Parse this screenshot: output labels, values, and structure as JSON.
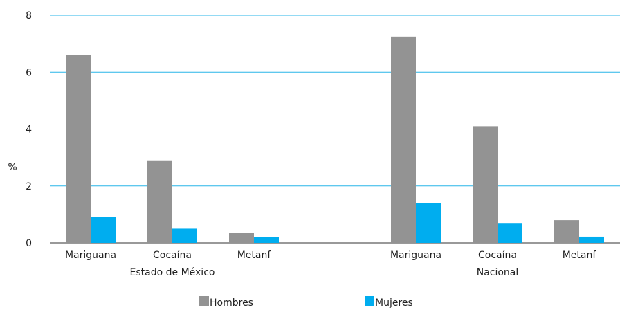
{
  "chart_data": {
    "type": "bar",
    "ylabel": "%",
    "ylim": [
      0,
      8
    ],
    "yticks": [
      "0",
      "2",
      "4",
      "6",
      "8"
    ],
    "grid": true,
    "legend_placement": "bottom",
    "groups": [
      {
        "label": "Estado de México",
        "categories": [
          "Mariguana",
          "Cocaína",
          "Metanf"
        ]
      },
      {
        "label": "Nacional",
        "categories": [
          "Mariguana",
          "Cocaína",
          "Metanf"
        ]
      }
    ],
    "series": [
      {
        "name": "Hombres",
        "color": "#939393",
        "values": [
          6.6,
          2.9,
          0.35,
          7.25,
          4.1,
          0.8
        ]
      },
      {
        "name": "Mujeres",
        "color": "#00adef",
        "values": [
          0.9,
          0.5,
          0.2,
          1.4,
          0.7,
          0.22
        ]
      }
    ],
    "grid_color": "#29b6e8"
  }
}
